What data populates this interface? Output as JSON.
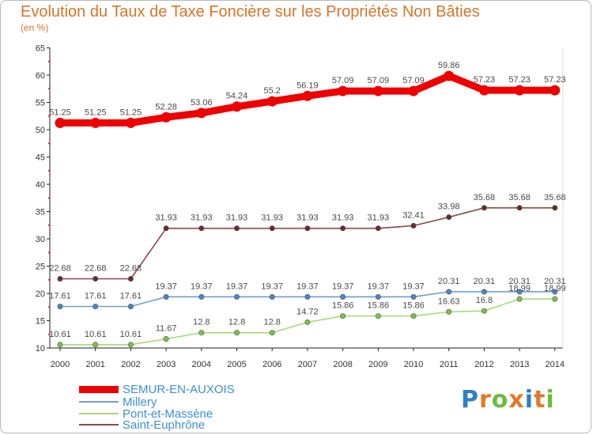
{
  "title": "Evolution du Taux de Taxe Foncière sur les Propriétés Non Bâties",
  "unit": "(en %)",
  "logo": {
    "text": "Proxiti",
    "colors": [
      "#2c7fc8",
      "#e07a2a",
      "#6cbb3c",
      "#e07a2a",
      "#2c7fc8",
      "#e07a2a",
      "#6cbb3c"
    ]
  },
  "chart_data": {
    "type": "line",
    "title": "Evolution du Taux de Taxe Foncière sur les Propriétés Non Bâties",
    "ylabel": "(en %)",
    "xlabel": "",
    "ylim": [
      10,
      65
    ],
    "yticks": [
      "10",
      "15",
      "20",
      "25",
      "30",
      "35",
      "40",
      "45",
      "50",
      "55",
      "60",
      "65"
    ],
    "categories": [
      "2000",
      "2001",
      "2002",
      "2003",
      "2004",
      "2005",
      "2006",
      "2007",
      "2008",
      "2009",
      "2010",
      "2011",
      "2012",
      "2013",
      "2014"
    ],
    "series": [
      {
        "name": "SEMUR-EN-AUXOIS",
        "color": "#ee0000",
        "marker": "#ee0000",
        "values": [
          51.25,
          51.25,
          51.25,
          52.28,
          53.06,
          54.24,
          55.2,
          56.19,
          57.09,
          57.09,
          57.09,
          59.86,
          57.23,
          57.23,
          57.23
        ],
        "labels": [
          "51.25",
          "51.25",
          "51.25",
          "52.28",
          "53.06",
          "54.24",
          "55.2",
          "56.19",
          "57.09",
          "57.09",
          "57.09",
          "59.86",
          "57.23",
          "57.23",
          "57.23"
        ]
      },
      {
        "name": "Millery",
        "color": "#6fa0cc",
        "marker": "#4a86c2",
        "values": [
          17.61,
          17.61,
          17.61,
          19.37,
          19.37,
          19.37,
          19.37,
          19.37,
          19.37,
          19.37,
          19.37,
          20.31,
          20.31,
          20.31,
          20.31
        ],
        "labels": [
          "17.61",
          "17.61",
          "17.61",
          "19.37",
          "19.37",
          "19.37",
          "19.37",
          "19.37",
          "19.37",
          "19.37",
          "19.37",
          "20.31",
          "20.31",
          "20.31",
          "20.31"
        ]
      },
      {
        "name": "Pont-et-Massène",
        "color": "#a8da7a",
        "marker": "#7cc243",
        "values": [
          10.61,
          10.61,
          10.61,
          11.67,
          12.8,
          12.8,
          12.8,
          14.72,
          15.86,
          15.86,
          15.86,
          16.63,
          16.8,
          18.99,
          18.99
        ],
        "labels": [
          "10.61",
          "10.61",
          "10.61",
          "11.67",
          "12.8",
          "12.8",
          "12.8",
          "14.72",
          "15.86",
          "15.86",
          "15.86",
          "16.63",
          "16.8",
          "18.99",
          "18.99"
        ]
      },
      {
        "name": "Saint-Euphrône",
        "color": "#8a4a4a",
        "marker": "#6e2a2a",
        "values": [
          22.68,
          22.68,
          22.68,
          31.93,
          31.93,
          31.93,
          31.93,
          31.93,
          31.93,
          31.93,
          32.41,
          33.98,
          35.68,
          35.68,
          35.68
        ],
        "labels": [
          "22.68",
          "22.68",
          "22.68",
          "31.93",
          "31.93",
          "31.93",
          "31.93",
          "31.93",
          "31.93",
          "31.93",
          "32.41",
          "33.98",
          "35.68",
          "35.68",
          "35.68"
        ]
      }
    ],
    "legend": [
      "SEMUR-EN-AUXOIS",
      "Millery",
      "Pont-et-Massène",
      "Saint-Euphrône"
    ],
    "legend_position": "bottom-left",
    "grid": false
  }
}
